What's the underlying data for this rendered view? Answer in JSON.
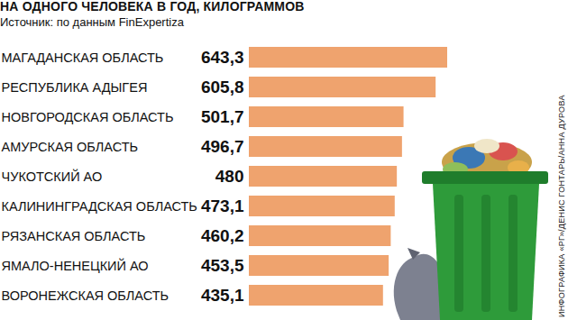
{
  "chart_data": {
    "type": "bar",
    "orientation": "horizontal",
    "title": "НА ОДНОГО ЧЕЛОВЕКА В ГОД, КИЛОГРАММОВ",
    "subtitle": "Источник: по данным FinExpertiza",
    "annotations": [
      "ИНФОГРАФИКА «РГ»/ДЕНИС ГОНТАРЬ/АННА ДУРОВА"
    ],
    "categories": [
      "МАГАДАНСКАЯ ОБЛАСТЬ",
      "РЕСПУБЛИКА АДЫГЕЯ",
      "НОВГОРОДСКАЯ ОБЛАСТЬ",
      "АМУРСКАЯ ОБЛАСТЬ",
      "ЧУКОТСКИЙ АО",
      "КАЛИНИНГРАДСКАЯ ОБЛАСТЬ",
      "РЯЗАНСКАЯ ОБЛАСТЬ",
      "ЯМАЛО-НЕНЕЦКИЙ АО",
      "ВОРОНЕЖСКАЯ ОБЛАСТЬ"
    ],
    "values": [
      643.3,
      605.8,
      501.7,
      496.7,
      480,
      473.1,
      460.2,
      453.5,
      435.1
    ],
    "value_labels": [
      "643,3",
      "605,8",
      "501,7",
      "496,7",
      "480",
      "473,1",
      "460,2",
      "453,5",
      "435,1"
    ],
    "data_labels": true,
    "color": "#efa36e",
    "xlim": [
      0,
      643.3
    ],
    "xticks": [],
    "tick_labels": false,
    "grid": false
  }
}
